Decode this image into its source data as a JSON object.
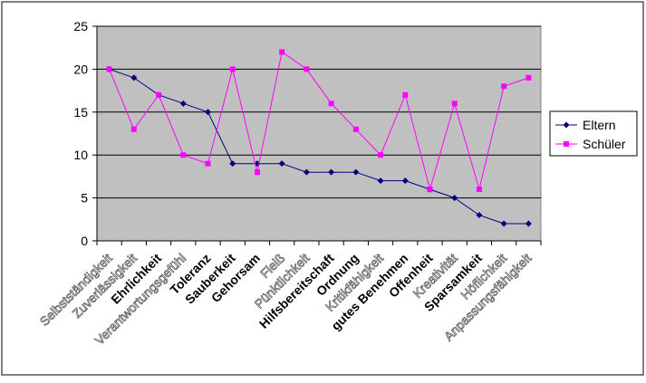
{
  "chart_data": {
    "type": "line",
    "title": "",
    "xlabel": "",
    "ylabel": "",
    "ylim": [
      0,
      25
    ],
    "yticks": [
      0,
      5,
      10,
      15,
      20,
      25
    ],
    "grid": "horizontal",
    "legend_position": "right",
    "plot_background": "#c0c0c0",
    "categories": [
      "Selbstständigkeit",
      "Zuverlässigkeit",
      "Ehrlichkeit",
      "Verantwortungsgefühl",
      "Toleranz",
      "Sauberkeit",
      "Gehorsam",
      "Fleiß",
      "Pünktlichkeit",
      "Hilfsbereitschaft",
      "Ordnung",
      "Kritikfähigkeit",
      "gutes Benehmen",
      "Offenheit",
      "Kreativität",
      "Sparsamkeit",
      "Höflichkeit",
      "Anpassungsfähigkeit"
    ],
    "category_label_style": [
      "white",
      "white",
      "bold",
      "white",
      "bold",
      "bold",
      "bold",
      "white",
      "white",
      "bold",
      "bold",
      "white",
      "bold",
      "bold",
      "white",
      "bold",
      "white",
      "white"
    ],
    "series": [
      {
        "name": "Eltern",
        "color": "#000080",
        "marker": "diamond",
        "values": [
          20,
          19,
          17,
          16,
          15,
          9,
          9,
          9,
          8,
          8,
          8,
          7,
          7,
          6,
          5,
          3,
          2,
          2
        ]
      },
      {
        "name": "Schüler",
        "color": "#ff00ff",
        "marker": "square",
        "values": [
          20,
          13,
          17,
          10,
          9,
          20,
          8,
          22,
          20,
          16,
          13,
          10,
          17,
          6,
          16,
          6,
          18,
          19
        ]
      }
    ]
  }
}
